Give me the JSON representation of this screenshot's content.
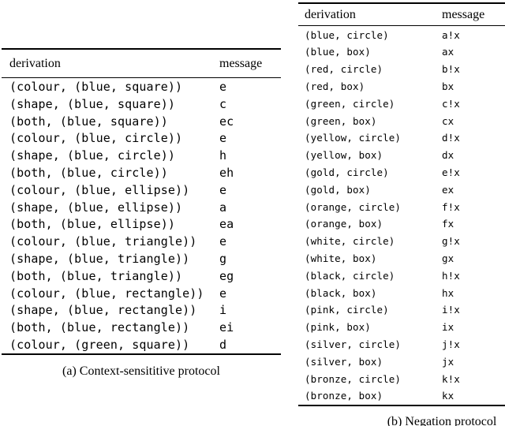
{
  "page": {
    "background": "#ffffff",
    "text_color": "#000000",
    "rule_color": "#000000"
  },
  "tables": [
    {
      "name": "context-sensitive-protocol",
      "columns": {
        "derivation": "derivation",
        "message": "message"
      },
      "rows": [
        {
          "derivation": "(colour, (blue, square))",
          "message": "e"
        },
        {
          "derivation": "(shape, (blue, square))",
          "message": "c"
        },
        {
          "derivation": "(both, (blue, square))",
          "message": "ec"
        },
        {
          "derivation": "(colour, (blue, circle))",
          "message": "e"
        },
        {
          "derivation": "(shape, (blue, circle))",
          "message": "h"
        },
        {
          "derivation": "(both, (blue, circle))",
          "message": "eh"
        },
        {
          "derivation": "(colour, (blue, ellipse))",
          "message": "e"
        },
        {
          "derivation": "(shape, (blue, ellipse))",
          "message": "a"
        },
        {
          "derivation": "(both, (blue, ellipse))",
          "message": "ea"
        },
        {
          "derivation": "(colour, (blue, triangle))",
          "message": "e"
        },
        {
          "derivation": "(shape, (blue, triangle))",
          "message": "g"
        },
        {
          "derivation": "(both, (blue, triangle))",
          "message": "eg"
        },
        {
          "derivation": "(colour, (blue, rectangle))",
          "message": "e"
        },
        {
          "derivation": "(shape, (blue, rectangle))",
          "message": "i"
        },
        {
          "derivation": "(both, (blue, rectangle))",
          "message": "ei"
        },
        {
          "derivation": "(colour, (green, square))",
          "message": "d"
        }
      ],
      "caption": "(a) Context-sensititive protocol"
    },
    {
      "name": "negation-protocol",
      "columns": {
        "derivation": "derivation",
        "message": "message"
      },
      "rows": [
        {
          "derivation": "(blue, circle)",
          "message": "a!x"
        },
        {
          "derivation": "(blue, box)",
          "message": "ax"
        },
        {
          "derivation": "(red, circle)",
          "message": "b!x"
        },
        {
          "derivation": "(red, box)",
          "message": "bx"
        },
        {
          "derivation": "(green, circle)",
          "message": "c!x"
        },
        {
          "derivation": "(green, box)",
          "message": "cx"
        },
        {
          "derivation": "(yellow, circle)",
          "message": "d!x"
        },
        {
          "derivation": "(yellow, box)",
          "message": "dx"
        },
        {
          "derivation": "(gold, circle)",
          "message": "e!x"
        },
        {
          "derivation": "(gold, box)",
          "message": "ex"
        },
        {
          "derivation": "(orange, circle)",
          "message": "f!x"
        },
        {
          "derivation": "(orange, box)",
          "message": "fx"
        },
        {
          "derivation": "(white, circle)",
          "message": "g!x"
        },
        {
          "derivation": "(white, box)",
          "message": "gx"
        },
        {
          "derivation": "(black, circle)",
          "message": "h!x"
        },
        {
          "derivation": "(black, box)",
          "message": "hx"
        },
        {
          "derivation": "(pink, circle)",
          "message": "i!x"
        },
        {
          "derivation": "(pink, box)",
          "message": "ix"
        },
        {
          "derivation": "(silver, circle)",
          "message": "j!x"
        },
        {
          "derivation": "(silver, box)",
          "message": "jx"
        },
        {
          "derivation": "(bronze, circle)",
          "message": "k!x"
        },
        {
          "derivation": "(bronze, box)",
          "message": "kx"
        }
      ],
      "caption": "(b) Negation protocol"
    }
  ]
}
